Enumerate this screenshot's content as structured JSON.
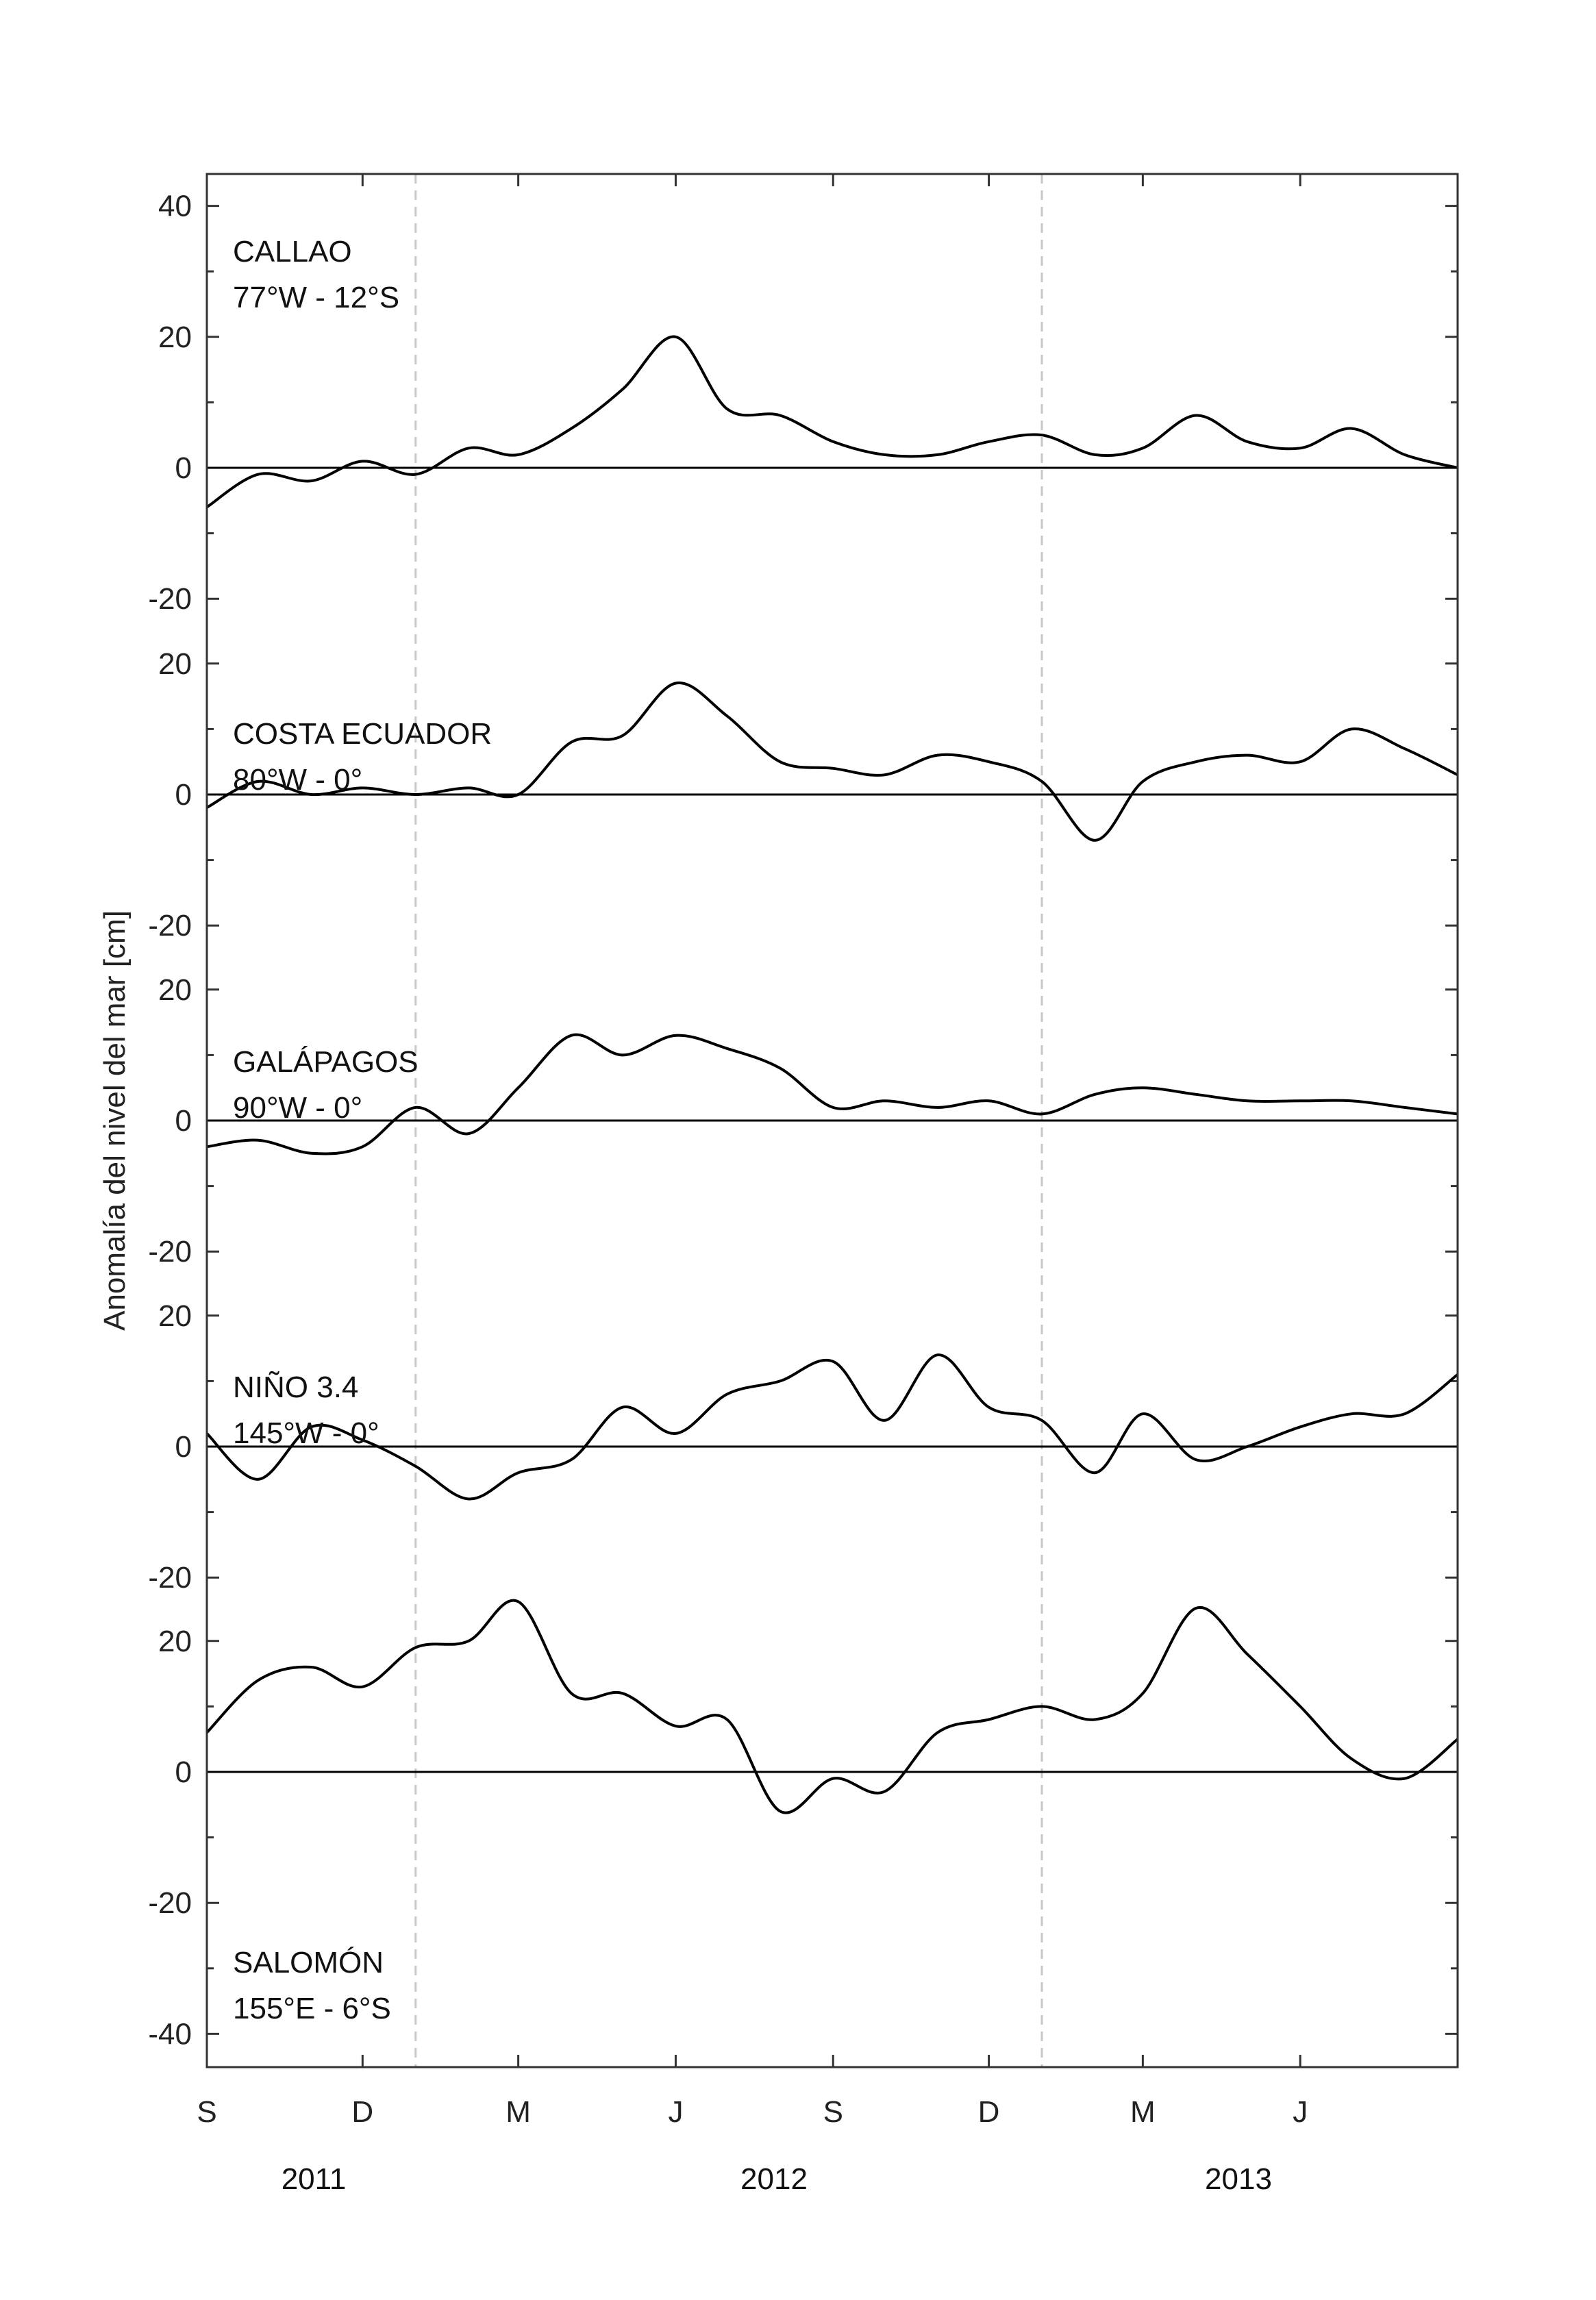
{
  "chart_data": {
    "type": "line",
    "ylabel": "Anomalía del nivel del mar [cm]",
    "xlabel": "",
    "x_month_ticks": [
      "S",
      "D",
      "M",
      "J",
      "S",
      "D",
      "M",
      "J"
    ],
    "x_tick_dates": [
      "2011-09-01",
      "2011-12-01",
      "2012-03-01",
      "2012-06-01",
      "2012-09-01",
      "2012-12-01",
      "2013-03-01",
      "2013-06-01"
    ],
    "xlim": [
      "2011-09-01",
      "2013-09-01"
    ],
    "year_labels": [
      "2011",
      "2012",
      "2013"
    ],
    "year_dividers": [
      "2012-01-01",
      "2013-01-01"
    ],
    "y_tick_labels": [
      "40",
      "20",
      "0",
      "-20",
      "20",
      "0",
      "-20",
      "20",
      "0",
      "-20",
      "20",
      "0",
      "-20",
      "20",
      "0",
      "-20",
      "-40"
    ],
    "dates": [
      "2011-09-01",
      "2011-10-01",
      "2011-11-01",
      "2011-12-01",
      "2012-01-01",
      "2012-02-01",
      "2012-03-01",
      "2012-04-01",
      "2012-05-01",
      "2012-06-01",
      "2012-07-01",
      "2012-08-01",
      "2012-09-01",
      "2012-10-01",
      "2012-11-01",
      "2012-12-01",
      "2013-01-01",
      "2013-02-01",
      "2013-03-01",
      "2013-04-01",
      "2013-05-01",
      "2013-06-01",
      "2013-07-01",
      "2013-08-01",
      "2013-09-01"
    ],
    "panels": [
      {
        "name": "CALLAO",
        "location": "77°W - 12°S",
        "label_position": "top",
        "ylim": [
          -20,
          45
        ],
        "yticks": [
          40,
          20,
          0,
          -20
        ],
        "series": [
          {
            "name": "CALLAO",
            "values": [
              -6,
              -1,
              -2,
              1,
              -1,
              3,
              2,
              6,
              12,
              20,
              9,
              8,
              4,
              2,
              2,
              4,
              5,
              2,
              3,
              8,
              4,
              3,
              6,
              2,
              0
            ]
          }
        ]
      },
      {
        "name": "COSTA ECUADOR",
        "location": "80°W - 0°",
        "label_position": "top",
        "ylim": [
          -25,
          25
        ],
        "yticks": [
          20,
          0,
          -20
        ],
        "series": [
          {
            "name": "COSTA ECUADOR",
            "values": [
              -2,
              2,
              0,
              1,
              0,
              1,
              0,
              8,
              9,
              17,
              12,
              5,
              4,
              3,
              6,
              5,
              2,
              -7,
              2,
              5,
              6,
              5,
              10,
              7,
              3
            ]
          }
        ]
      },
      {
        "name": "GALÁPAGOS",
        "location": "90°W - 0°",
        "label_position": "top",
        "ylim": [
          -25,
          25
        ],
        "yticks": [
          20,
          0,
          -20
        ],
        "series": [
          {
            "name": "GALÁPAGOS",
            "values": [
              -4,
              -3,
              -5,
              -4,
              2,
              -2,
              5,
              13,
              10,
              13,
              11,
              8,
              2,
              3,
              2,
              3,
              1,
              4,
              5,
              4,
              3,
              3,
              3,
              2,
              1
            ]
          }
        ]
      },
      {
        "name": "NIÑO 3.4",
        "location": "145°W - 0°",
        "label_position": "top",
        "ylim": [
          -25,
          25
        ],
        "yticks": [
          20,
          0,
          -20
        ],
        "series": [
          {
            "name": "NIÑO 3.4",
            "values": [
              2,
              -5,
              3,
              1,
              -3,
              -8,
              -4,
              -2,
              6,
              2,
              8,
              10,
              13,
              4,
              14,
              6,
              4,
              -4,
              5,
              -2,
              0,
              3,
              5,
              5,
              11
            ]
          }
        ]
      },
      {
        "name": "SALOMÓN",
        "location": "155°E - 6°S",
        "label_position": "bottom",
        "ylim": [
          -45,
          25
        ],
        "yticks": [
          20,
          0,
          -20,
          -40
        ],
        "series": [
          {
            "name": "SALOMÓN",
            "values": [
              6,
              14,
              16,
              13,
              19,
              20,
              26,
              12,
              12,
              7,
              8,
              -6,
              -1,
              -3,
              6,
              8,
              10,
              8,
              12,
              25,
              18,
              10,
              2,
              -1,
              5
            ]
          }
        ]
      }
    ]
  }
}
